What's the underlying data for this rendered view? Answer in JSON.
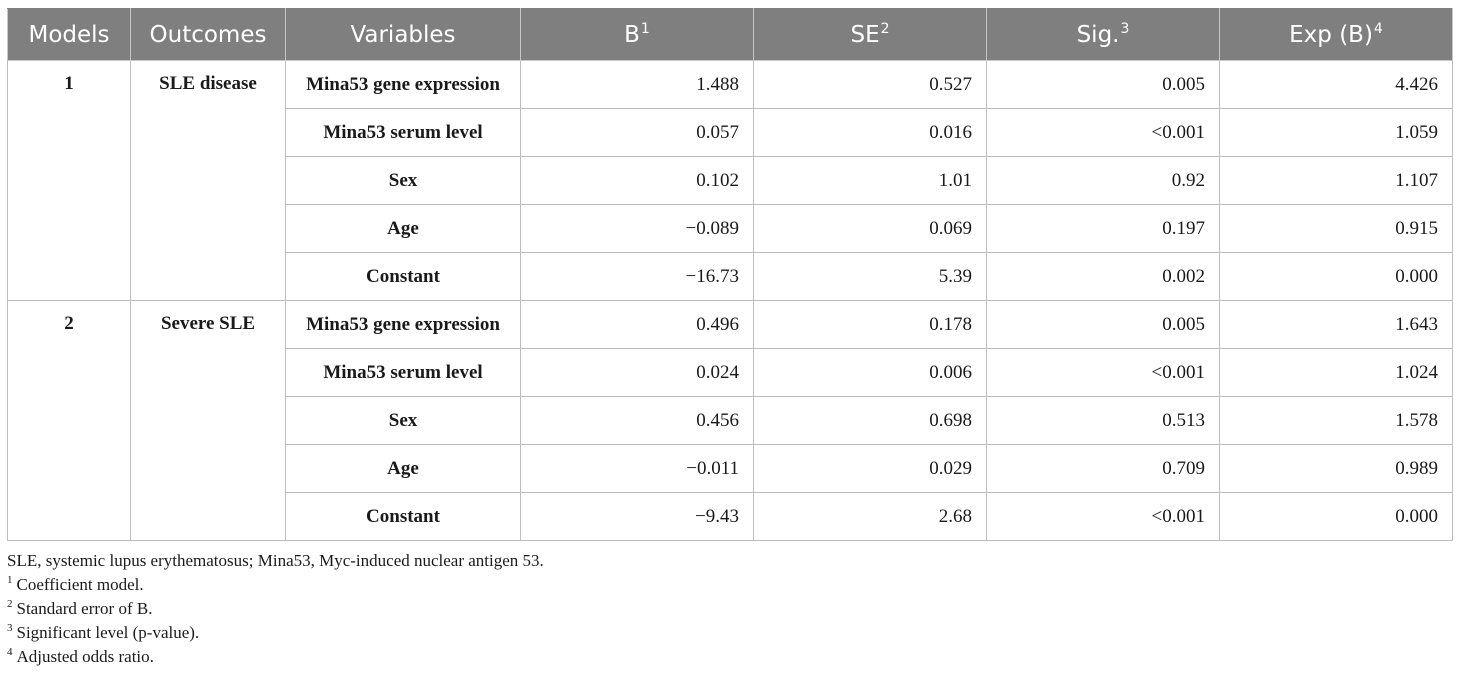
{
  "headers": {
    "models": "Models",
    "outcomes": "Outcomes",
    "variables": "Variables",
    "b": "B",
    "b_sup": "1",
    "se": "SE",
    "se_sup": "2",
    "sig": "Sig.",
    "sig_sup": "3",
    "expb": "Exp (B)",
    "expb_sup": "4"
  },
  "groups": [
    {
      "model": "1",
      "outcome": "SLE disease",
      "rows": [
        {
          "variable": "Mina53 gene expression",
          "b": "1.488",
          "se": "0.527",
          "sig": "0.005",
          "expb": "4.426"
        },
        {
          "variable": "Mina53 serum level",
          "b": "0.057",
          "se": "0.016",
          "sig": "<0.001",
          "expb": "1.059"
        },
        {
          "variable": "Sex",
          "b": "0.102",
          "se": "1.01",
          "sig": "0.92",
          "expb": "1.107"
        },
        {
          "variable": "Age",
          "b": "−0.089",
          "se": "0.069",
          "sig": "0.197",
          "expb": "0.915"
        },
        {
          "variable": "Constant",
          "b": "−16.73",
          "se": "5.39",
          "sig": "0.002",
          "expb": "0.000"
        }
      ]
    },
    {
      "model": "2",
      "outcome": "Severe SLE",
      "rows": [
        {
          "variable": "Mina53 gene expression",
          "b": "0.496",
          "se": "0.178",
          "sig": "0.005",
          "expb": "1.643"
        },
        {
          "variable": "Mina53 serum level",
          "b": "0.024",
          "se": "0.006",
          "sig": "<0.001",
          "expb": "1.024"
        },
        {
          "variable": "Sex",
          "b": "0.456",
          "se": "0.698",
          "sig": "0.513",
          "expb": "1.578"
        },
        {
          "variable": "Age",
          "b": "−0.011",
          "se": "0.029",
          "sig": "0.709",
          "expb": "0.989"
        },
        {
          "variable": "Constant",
          "b": "−9.43",
          "se": "2.68",
          "sig": "<0.001",
          "expb": "0.000"
        }
      ]
    }
  ],
  "footnotes": {
    "abbreviations": "SLE, systemic lupus erythematosus; Mina53, Myc-induced nuclear antigen 53.",
    "items": [
      {
        "marker": "1",
        "text": "Coefficient model."
      },
      {
        "marker": "2",
        "text": "Standard error of B."
      },
      {
        "marker": "3",
        "text": "Significant level (p-value)."
      },
      {
        "marker": "4",
        "text": "Adjusted odds ratio."
      }
    ]
  }
}
